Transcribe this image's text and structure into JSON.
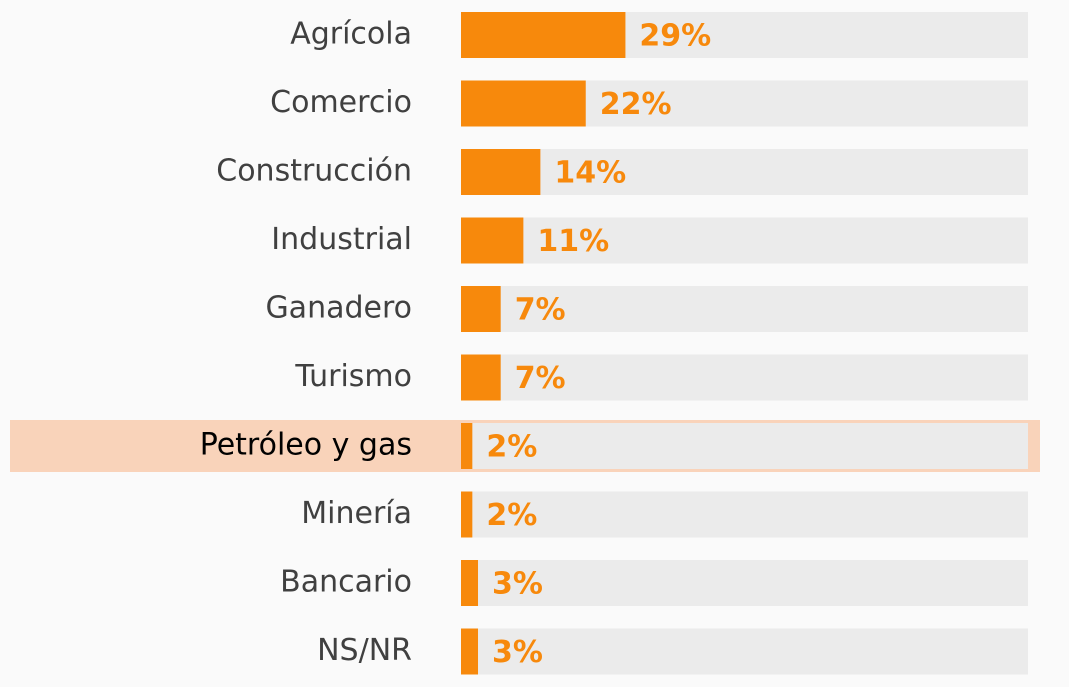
{
  "chart_data": {
    "type": "bar",
    "orientation": "horizontal",
    "categories": [
      "Agrícola",
      "Comercio",
      "Construcción",
      "Industrial",
      "Ganadero",
      "Turismo",
      "Petróleo y gas",
      "Minería",
      "Bancario",
      "NS/NR"
    ],
    "values": [
      29,
      22,
      14,
      11,
      7,
      7,
      2,
      2,
      3,
      3
    ],
    "value_labels": [
      "29%",
      "22%",
      "14%",
      "11%",
      "7%",
      "7%",
      "2%",
      "2%",
      "3%",
      "3%"
    ],
    "color": "#f7890c",
    "track_color": "#ebebeb",
    "highlight_index": 6,
    "highlight_color": "#f9d3ba",
    "xlim": [
      0,
      100
    ]
  }
}
